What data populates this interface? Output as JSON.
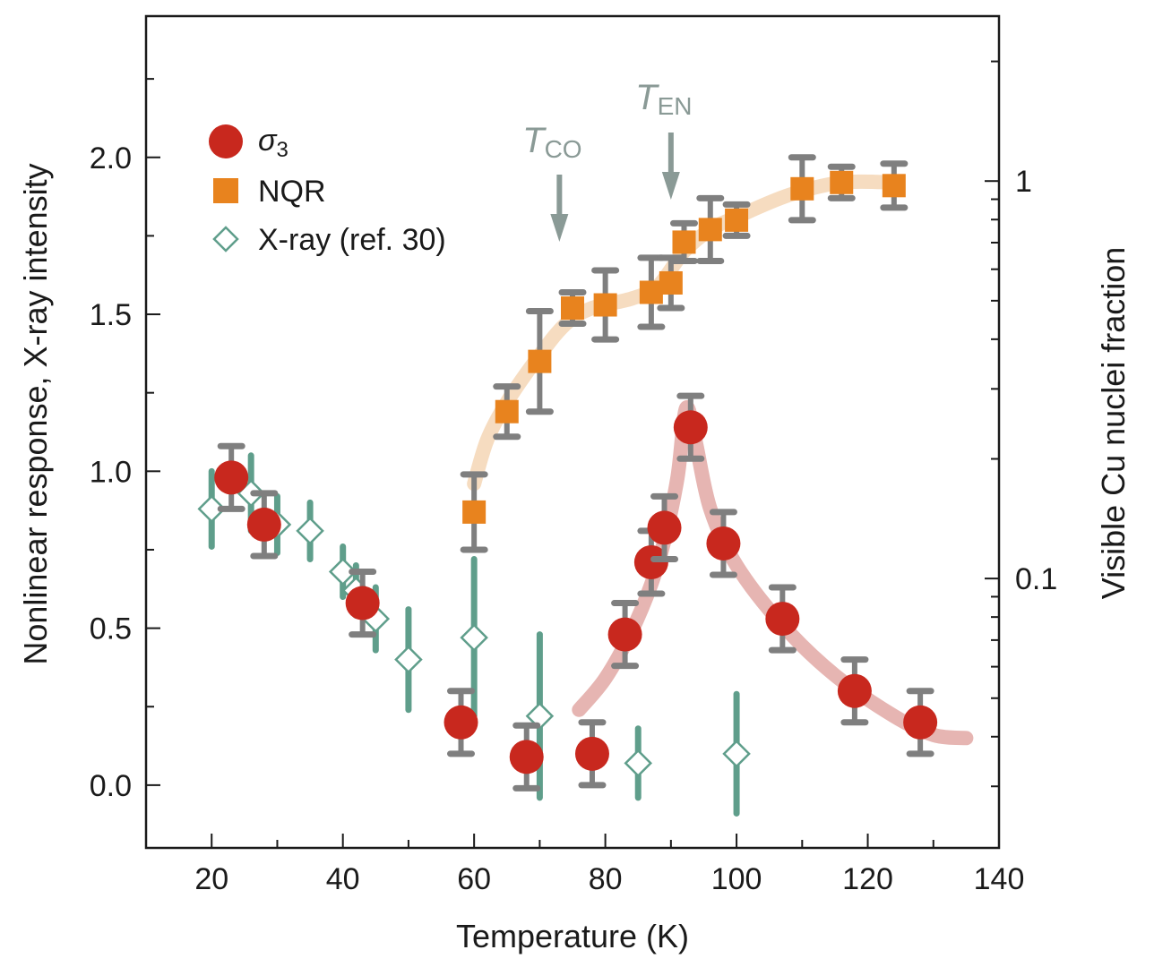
{
  "chart_data": {
    "type": "scatter",
    "xlabel": "Temperature (K)",
    "ylabel": "Nonlinear response, X-ray intensity",
    "y2label": "Visible Cu nuclei fraction",
    "xlim": [
      10,
      140
    ],
    "ylim": [
      -0.2,
      2.45
    ],
    "y2lim": [
      0.021,
      2.6
    ],
    "y2scale": "log",
    "x_ticks": [
      20,
      40,
      60,
      80,
      100,
      120,
      140
    ],
    "y_ticks": [
      0.0,
      0.5,
      1.0,
      1.5,
      2.0
    ],
    "y_tick_labels": [
      "0.0",
      "0.5",
      "1.0",
      "1.5",
      "2.0"
    ],
    "y2_ticks": [
      1,
      0.1
    ],
    "y2_tick_labels": [
      "1",
      "0.1"
    ],
    "legend_position": "top-left",
    "colors": {
      "sigma3": "#c8281e",
      "nqr": "#e8831e",
      "xray": "#5f9e8b",
      "error_gray": "#7f7f7f",
      "nqr_guide": "#f6dcc0",
      "sigma_guide": "#e6b5b2",
      "annotation": "#8a9a96"
    },
    "annotations": [
      {
        "main": "T",
        "sub": "CO",
        "x": 73
      },
      {
        "main": "T",
        "sub": "EN",
        "x": 90
      }
    ],
    "series": [
      {
        "name": "σ",
        "name_sub": "3",
        "marker": "circle",
        "points": [
          {
            "x": 23,
            "y": 0.98,
            "err": 0.1
          },
          {
            "x": 28,
            "y": 0.83,
            "err": 0.1
          },
          {
            "x": 43,
            "y": 0.58,
            "err": 0.1
          },
          {
            "x": 58,
            "y": 0.2,
            "err": 0.1
          },
          {
            "x": 68,
            "y": 0.09,
            "err": 0.1
          },
          {
            "x": 78,
            "y": 0.1,
            "err": 0.1
          },
          {
            "x": 83,
            "y": 0.48,
            "err": 0.1
          },
          {
            "x": 87,
            "y": 0.71,
            "err": 0.1
          },
          {
            "x": 89,
            "y": 0.82,
            "err": 0.1
          },
          {
            "x": 93,
            "y": 1.14,
            "err": 0.1
          },
          {
            "x": 98,
            "y": 0.77,
            "err": 0.1
          },
          {
            "x": 107,
            "y": 0.53,
            "err": 0.1
          },
          {
            "x": 118,
            "y": 0.3,
            "err": 0.1
          },
          {
            "x": 128,
            "y": 0.2,
            "err": 0.1
          }
        ],
        "guide_y": "left",
        "guide_curve": [
          {
            "x": 76,
            "y": 0.24
          },
          {
            "x": 80,
            "y": 0.34
          },
          {
            "x": 84,
            "y": 0.49
          },
          {
            "x": 87,
            "y": 0.64
          },
          {
            "x": 89,
            "y": 0.78
          },
          {
            "x": 91,
            "y": 0.98
          },
          {
            "x": 92.3,
            "y": 1.2
          },
          {
            "x": 93.7,
            "y": 1.1
          },
          {
            "x": 96,
            "y": 0.88
          },
          {
            "x": 100,
            "y": 0.7
          },
          {
            "x": 107,
            "y": 0.51
          },
          {
            "x": 115,
            "y": 0.35
          },
          {
            "x": 124,
            "y": 0.22
          },
          {
            "x": 130,
            "y": 0.16
          },
          {
            "x": 135,
            "y": 0.15
          }
        ]
      },
      {
        "name": "NQR",
        "marker": "square",
        "points": [
          {
            "x": 60,
            "y": 0.87,
            "err": 0.12
          },
          {
            "x": 65,
            "y": 1.19,
            "err": 0.08
          },
          {
            "x": 70,
            "y": 1.35,
            "err": 0.16
          },
          {
            "x": 75,
            "y": 1.52,
            "err": 0.05
          },
          {
            "x": 80,
            "y": 1.53,
            "err": 0.11
          },
          {
            "x": 87,
            "y": 1.57,
            "err": 0.11
          },
          {
            "x": 90,
            "y": 1.6,
            "err": 0.08
          },
          {
            "x": 92,
            "y": 1.73,
            "err": 0.06
          },
          {
            "x": 96,
            "y": 1.77,
            "err": 0.1
          },
          {
            "x": 100,
            "y": 1.8,
            "err": 0.05
          },
          {
            "x": 110,
            "y": 1.9,
            "err": 0.1
          },
          {
            "x": 116,
            "y": 1.92,
            "err": 0.05
          },
          {
            "x": 124,
            "y": 1.91,
            "err": 0.07
          }
        ],
        "guide_y": "left",
        "guide_curve": [
          {
            "x": 60,
            "y": 0.96
          },
          {
            "x": 62,
            "y": 1.1
          },
          {
            "x": 65,
            "y": 1.22
          },
          {
            "x": 70,
            "y": 1.37
          },
          {
            "x": 74,
            "y": 1.47
          },
          {
            "x": 78,
            "y": 1.52
          },
          {
            "x": 84,
            "y": 1.55
          },
          {
            "x": 88,
            "y": 1.59
          },
          {
            "x": 92,
            "y": 1.7
          },
          {
            "x": 96,
            "y": 1.77
          },
          {
            "x": 100,
            "y": 1.81
          },
          {
            "x": 108,
            "y": 1.88
          },
          {
            "x": 116,
            "y": 1.92
          },
          {
            "x": 124,
            "y": 1.92
          }
        ]
      },
      {
        "name": "X-ray (ref. 30)",
        "marker": "diamond-open",
        "points": [
          {
            "x": 20,
            "y": 0.88,
            "err": 0.12
          },
          {
            "x": 26,
            "y": 0.93,
            "err": 0.12
          },
          {
            "x": 30,
            "y": 0.83,
            "err": 0.09
          },
          {
            "x": 35,
            "y": 0.81,
            "err": 0.09
          },
          {
            "x": 40,
            "y": 0.68,
            "err": 0.08
          },
          {
            "x": 42,
            "y": 0.62,
            "err": 0.08
          },
          {
            "x": 45,
            "y": 0.53,
            "err": 0.1
          },
          {
            "x": 50,
            "y": 0.4,
            "err": 0.16
          },
          {
            "x": 60,
            "y": 0.47,
            "err": 0.25
          },
          {
            "x": 70,
            "y": 0.22,
            "err": 0.26
          },
          {
            "x": 85,
            "y": 0.07,
            "err": 0.11
          },
          {
            "x": 100,
            "y": 0.1,
            "err": 0.19
          }
        ]
      }
    ]
  }
}
